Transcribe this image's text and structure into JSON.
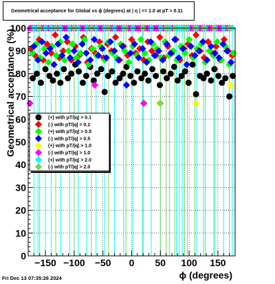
{
  "chart_data": {
    "type": "scatter",
    "title": "Geometrical acceptance for Global vs ϕ (degrees) at | η | <= 1.0 at pT > 0.11",
    "xlabel": "ϕ (degrees)",
    "ylabel": "Geometrical acceptance (%)",
    "xlim": [
      -180,
      180
    ],
    "ylim": [
      0,
      100
    ],
    "x_ticks": [
      -150,
      -100,
      -50,
      0,
      50,
      100,
      150
    ],
    "y_ticks": [
      0,
      10,
      20,
      30,
      40,
      50,
      60,
      70,
      80,
      90,
      100
    ],
    "grid": true,
    "legend_position": "middle-left",
    "series": [
      {
        "name": "(+) with pT/|q| > 0.1",
        "color": "#000000",
        "x": [
          -172,
          -165,
          -158,
          -150,
          -143,
          -137,
          -130,
          -124,
          -118,
          -111,
          -105,
          -98,
          -92,
          -85,
          -79,
          -72,
          -66,
          -60,
          -53,
          -47,
          -41,
          -34,
          -28,
          -21,
          -15,
          -9,
          -2,
          4,
          10,
          17,
          23,
          29,
          36,
          42,
          49,
          55,
          61,
          68,
          74,
          80,
          87,
          93,
          99,
          106,
          112,
          119,
          125,
          131,
          138,
          144,
          151,
          157,
          163,
          170,
          176
        ],
        "y": [
          78,
          80,
          76,
          82,
          79,
          77,
          80,
          76,
          82,
          78,
          80,
          84,
          81,
          76,
          79,
          83,
          77,
          80,
          82,
          72,
          79,
          81,
          76,
          78,
          80,
          83,
          79,
          76,
          81,
          78,
          80,
          77,
          82,
          79,
          75,
          81,
          78,
          80,
          83,
          77,
          79,
          81,
          76,
          84,
          71,
          79,
          78,
          80,
          77,
          82,
          79,
          76,
          78,
          70,
          79
        ]
      },
      {
        "name": "(-) with pT/|q| > 0.1",
        "color": "#ff0000",
        "x": [
          -175,
          -168,
          -161,
          -154,
          -147,
          -140,
          -133,
          -126,
          -119,
          -112,
          -105,
          -98,
          -91,
          -84,
          -77,
          -70,
          -63,
          -56,
          -49,
          -42,
          -35,
          -28,
          -21,
          -14,
          -7,
          0,
          7,
          14,
          21,
          28,
          35,
          42,
          49,
          56,
          63,
          70,
          77,
          84,
          91,
          98,
          105,
          112,
          119,
          126,
          133,
          140,
          147,
          154,
          161,
          168,
          175
        ],
        "y": [
          91,
          88,
          95,
          86,
          93,
          89,
          97,
          87,
          90,
          94,
          86,
          92,
          88,
          96,
          85,
          91,
          89,
          94,
          87,
          93,
          90,
          96,
          86,
          92,
          88,
          95,
          89,
          91,
          86,
          94,
          90,
          88,
          96,
          87,
          92,
          89,
          95,
          86,
          91,
          93,
          88,
          97,
          90,
          87,
          94,
          89,
          92,
          86,
          95,
          90,
          88
        ]
      },
      {
        "name": "(+) with pT/|q| > 0.5",
        "color": "#00ff00",
        "x": [
          -173,
          -166,
          -159,
          -152,
          -145,
          -138,
          -131,
          -124,
          -117,
          -110,
          -103,
          -96,
          -89,
          -82,
          -75,
          -68,
          -61,
          -54,
          -47,
          -40,
          -33,
          -26,
          -19,
          -12,
          -5,
          2,
          9,
          16,
          23,
          30,
          37,
          44,
          51,
          58,
          65,
          72,
          79,
          86,
          93,
          100,
          107,
          114,
          121,
          128,
          135,
          142,
          149,
          156,
          163,
          170,
          177
        ],
        "y": [
          89,
          93,
          87,
          91,
          85,
          92,
          88,
          94,
          86,
          90,
          93,
          87,
          89,
          95,
          84,
          91,
          88,
          92,
          86,
          94,
          89,
          87,
          93,
          90,
          85,
          92,
          88,
          95,
          89,
          86,
          93,
          91,
          87,
          94,
          88,
          90,
          86,
          92,
          89,
          95,
          87,
          91,
          93,
          85,
          90,
          88,
          94,
          86,
          92,
          84,
          89
        ]
      },
      {
        "name": "(-) with pT/|q| > 0.5",
        "color": "#0000ff",
        "x": [
          -170,
          -163,
          -156,
          -149,
          -142,
          -135,
          -128,
          -121,
          -114,
          -107,
          -100,
          -93,
          -86,
          -79,
          -72,
          -65,
          -58,
          -51,
          -44,
          -37,
          -30,
          -23,
          -16,
          -9,
          -2,
          5,
          12,
          19,
          26,
          33,
          40,
          47,
          54,
          61,
          68,
          75,
          82,
          89,
          96,
          103,
          110,
          117,
          124,
          131,
          138,
          145,
          152,
          159,
          166,
          173
        ],
        "y": [
          92,
          86,
          94,
          89,
          91,
          84,
          93,
          88,
          96,
          87,
          90,
          85,
          93,
          89,
          86,
          95,
          88,
          91,
          87,
          94,
          90,
          86,
          92,
          75,
          89,
          93,
          87,
          91,
          85,
          94,
          88,
          90,
          86,
          93,
          89,
          95,
          87,
          91,
          84,
          92,
          88,
          90,
          94,
          86,
          92,
          89,
          87,
          93,
          90,
          85
        ]
      },
      {
        "name": "(+) with pT/|q| > 1.0",
        "color": "#ffff00",
        "x": [
          -175,
          -140,
          -105,
          -77,
          -52,
          -30,
          -5,
          22,
          48,
          80,
          112,
          145,
          165,
          172
        ],
        "y": [
          100,
          100,
          100,
          100,
          100,
          100,
          100,
          67,
          67,
          100,
          67,
          100,
          100,
          75
        ]
      },
      {
        "name": "(-) with pT/|q| > 1.0",
        "color": "#ff00ff",
        "x": [
          -177,
          -173,
          -169,
          -165,
          -161,
          -157,
          -153,
          -149,
          -145,
          -141,
          -137,
          -133,
          -129,
          -125,
          -121,
          -117,
          -113,
          -109,
          -105,
          -101,
          -97,
          -93,
          -89,
          -85,
          -81,
          -77,
          -73,
          -69,
          -65,
          -61,
          -57,
          -53,
          -49,
          -45,
          -41,
          -37,
          -33,
          -29,
          -25,
          -21,
          -17,
          -13,
          -9,
          -5,
          -1,
          3,
          7,
          11,
          15,
          19,
          23,
          27,
          31,
          35,
          39,
          43,
          47,
          51,
          55,
          59,
          63,
          67,
          71,
          75,
          79,
          83,
          87,
          91,
          95,
          99,
          103,
          107,
          111,
          115,
          119,
          123,
          127,
          131,
          135,
          139,
          143,
          147,
          151,
          155,
          159,
          163,
          167,
          171,
          175,
          -177,
          -64,
          21
        ],
        "y": [
          100,
          100,
          100,
          100,
          100,
          100,
          100,
          100,
          100,
          100,
          100,
          100,
          100,
          100,
          100,
          100,
          100,
          100,
          100,
          100,
          100,
          100,
          100,
          100,
          100,
          100,
          100,
          100,
          100,
          100,
          100,
          100,
          100,
          100,
          100,
          100,
          100,
          100,
          100,
          100,
          100,
          100,
          100,
          100,
          100,
          100,
          100,
          100,
          100,
          100,
          100,
          100,
          100,
          100,
          100,
          100,
          100,
          100,
          100,
          100,
          100,
          100,
          100,
          100,
          100,
          100,
          100,
          100,
          100,
          100,
          100,
          100,
          100,
          100,
          100,
          100,
          100,
          100,
          100,
          100,
          100,
          100,
          100,
          100,
          100,
          100,
          100,
          100,
          100,
          67,
          75,
          67
        ]
      },
      {
        "name": "(+) with pT/|q| > 2.0",
        "color": "#00ffff",
        "x": [
          -170,
          -163,
          -150,
          -140,
          -124,
          -108,
          -93,
          -78,
          -62,
          -47,
          -30,
          -14,
          2,
          19,
          34,
          50,
          66,
          78,
          83,
          88,
          97,
          113,
          128,
          145,
          160,
          175
        ],
        "y": [
          100,
          100,
          100,
          100,
          100,
          100,
          100,
          100,
          100,
          100,
          100,
          100,
          100,
          100,
          100,
          100,
          100,
          100,
          100,
          100,
          100,
          100,
          100,
          100,
          100,
          100
        ]
      },
      {
        "name": "(-) with pT/|q| > 2.0",
        "color": "#7fd15b",
        "x": [
          -160,
          -132,
          -100,
          -70,
          -40,
          -10,
          20,
          50,
          60,
          75,
          92,
          110,
          125,
          143,
          170
        ],
        "y": [
          100,
          100,
          100,
          100,
          100,
          100,
          100,
          67,
          100,
          100,
          100,
          100,
          100,
          100,
          100
        ]
      }
    ],
    "vertical_lines": [
      {
        "color": "#00ffff",
        "x": [
          -170,
          -163,
          -150,
          -140,
          -124,
          -108,
          -93,
          -78,
          -62,
          -47,
          -30,
          -14,
          2,
          19,
          34,
          50,
          66,
          78,
          83,
          88,
          97,
          113,
          128,
          145,
          160,
          175
        ]
      },
      {
        "color": "#7fd15b",
        "x": [
          -160,
          -132,
          -100,
          -70,
          -40,
          -10,
          20,
          50,
          60,
          75,
          92,
          110,
          125,
          143,
          170
        ]
      }
    ]
  },
  "footer": {
    "timestamp": "Fri Dec 13 07:35:26 2024"
  }
}
